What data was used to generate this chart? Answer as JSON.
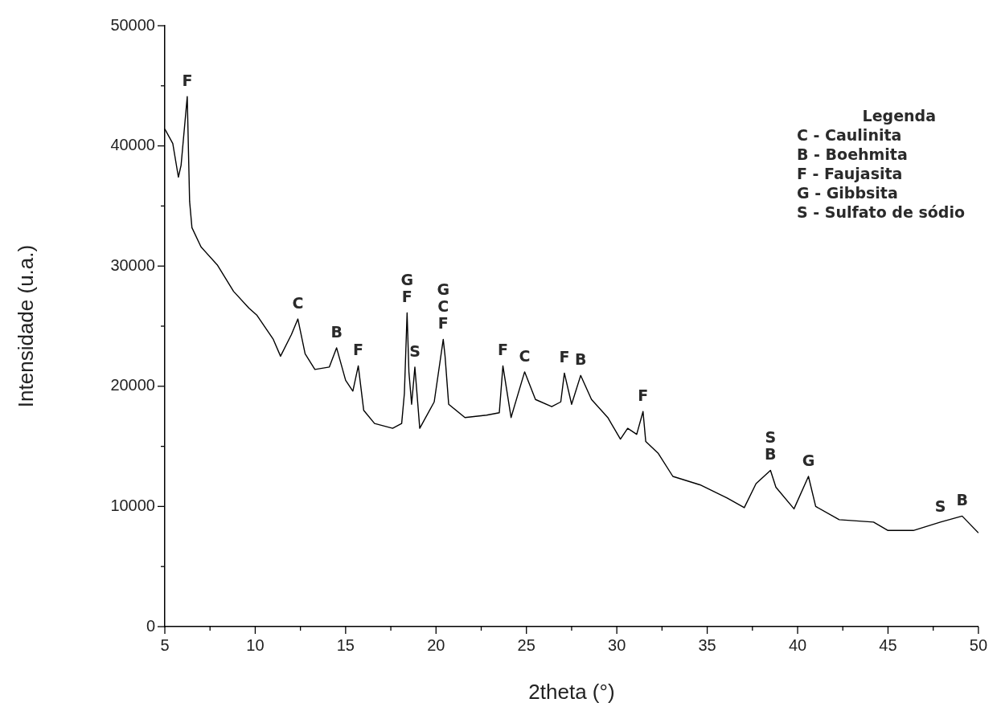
{
  "chart_data": {
    "type": "line",
    "xlabel": "2theta (°)",
    "ylabel": "Intensidade (u.a.)",
    "legend_title": "Legenda",
    "grid": false,
    "marker": "none",
    "line_style": "solid",
    "xlim": [
      5,
      50
    ],
    "ylim": [
      0,
      50000
    ],
    "xticks": [
      5,
      {
        "value": 7.5,
        "label": null
      },
      10,
      {
        "value": 12.5,
        "label": null
      },
      15,
      {
        "value": 17.5,
        "label": null
      },
      20,
      {
        "value": 22.5,
        "label": null
      },
      25,
      {
        "value": 27.5,
        "label": null
      },
      30,
      {
        "value": 32.5,
        "label": null
      },
      35,
      {
        "value": 37.5,
        "label": null
      },
      40,
      {
        "value": 42.5,
        "label": null
      },
      45,
      {
        "value": 47.5,
        "label": null
      },
      50
    ],
    "yticks": [
      0,
      {
        "value": 5000,
        "label": null
      },
      10000,
      {
        "value": 15000,
        "label": null
      },
      20000,
      {
        "value": 25000,
        "label": null
      },
      30000,
      {
        "value": 35000,
        "label": null
      },
      40000,
      {
        "value": 45000,
        "label": null
      },
      50000
    ],
    "series": [
      {
        "color": "#000000",
        "x": [
          5,
          5.44,
          5.75,
          5.9,
          6.24,
          6.37,
          6.5,
          7.0,
          7.9,
          8.8,
          9.65,
          10.1,
          11.0,
          11.4,
          12.0,
          12.36,
          12.76,
          13.3,
          14.1,
          14.5,
          15.0,
          15.4,
          15.7,
          16.0,
          16.6,
          17.6,
          18.1,
          18.25,
          18.4,
          18.5,
          18.65,
          18.83,
          19.1,
          19.9,
          20.4,
          20.5,
          20.7,
          21.6,
          22.8,
          23.5,
          23.7,
          24.15,
          24.9,
          25.5,
          26.4,
          26.9,
          27.1,
          27.5,
          28.0,
          28.6,
          29.5,
          30.2,
          30.6,
          31.1,
          31.45,
          31.6,
          32.3,
          33.1,
          34.6,
          36.1,
          37.05,
          37.7,
          38.5,
          38.8,
          39.8,
          40.6,
          41.0,
          42.3,
          44.2,
          45.0,
          46.4,
          47.9,
          49.1,
          50
        ],
        "values": [
          41400,
          40200,
          37400,
          38400,
          44100,
          35400,
          33200,
          31600,
          30100,
          27900,
          26500,
          25900,
          23900,
          22500,
          24300,
          25600,
          22700,
          21400,
          21600,
          23200,
          20500,
          19600,
          21700,
          18000,
          16900,
          16500,
          16900,
          19400,
          26100,
          21200,
          18500,
          21600,
          16500,
          18700,
          23900,
          22500,
          18500,
          17400,
          17600,
          17800,
          21700,
          17400,
          21200,
          18900,
          18300,
          18700,
          21100,
          18500,
          20900,
          18900,
          17400,
          15600,
          16500,
          16000,
          17900,
          15400,
          14400,
          12500,
          11800,
          10700,
          9900,
          11900,
          13000,
          11600,
          9800,
          12500,
          10000,
          8900,
          8700,
          8000,
          8000,
          8700,
          9200,
          7800
        ]
      }
    ],
    "annotations": [
      {
        "text": "F",
        "x": 6.24,
        "y": 44100
      },
      {
        "text": "C",
        "x": 12.36,
        "y": 25600
      },
      {
        "text": "B",
        "x": 14.5,
        "y": 23200
      },
      {
        "text": "F",
        "x": 15.7,
        "y": 21700
      },
      {
        "text": "F",
        "x": 18.4,
        "y": 26100
      },
      {
        "text": "G",
        "x": 18.4,
        "y": 26100
      },
      {
        "text": "S",
        "x": 18.83,
        "y": 21600
      },
      {
        "text": "F",
        "x": 20.4,
        "y": 23900
      },
      {
        "text": "C",
        "x": 20.4,
        "y": 23900
      },
      {
        "text": "G",
        "x": 20.4,
        "y": 23900
      },
      {
        "text": "F",
        "x": 23.7,
        "y": 21700
      },
      {
        "text": "C",
        "x": 24.9,
        "y": 21200
      },
      {
        "text": "F",
        "x": 27.1,
        "y": 21100
      },
      {
        "text": "B",
        "x": 28.0,
        "y": 20900
      },
      {
        "text": "F",
        "x": 31.45,
        "y": 17900
      },
      {
        "text": "B",
        "x": 38.5,
        "y": 13000
      },
      {
        "text": "S",
        "x": 38.5,
        "y": 13000
      },
      {
        "text": "G",
        "x": 40.6,
        "y": 12500
      },
      {
        "text": "S",
        "x": 47.9,
        "y": 8700
      },
      {
        "text": "B",
        "x": 49.1,
        "y": 9200
      },
      "C - Caulinita",
      "B - Boehmita",
      "F - Faujasita",
      "G - Gibbsita",
      "S - Sulfato de sódio"
    ]
  }
}
